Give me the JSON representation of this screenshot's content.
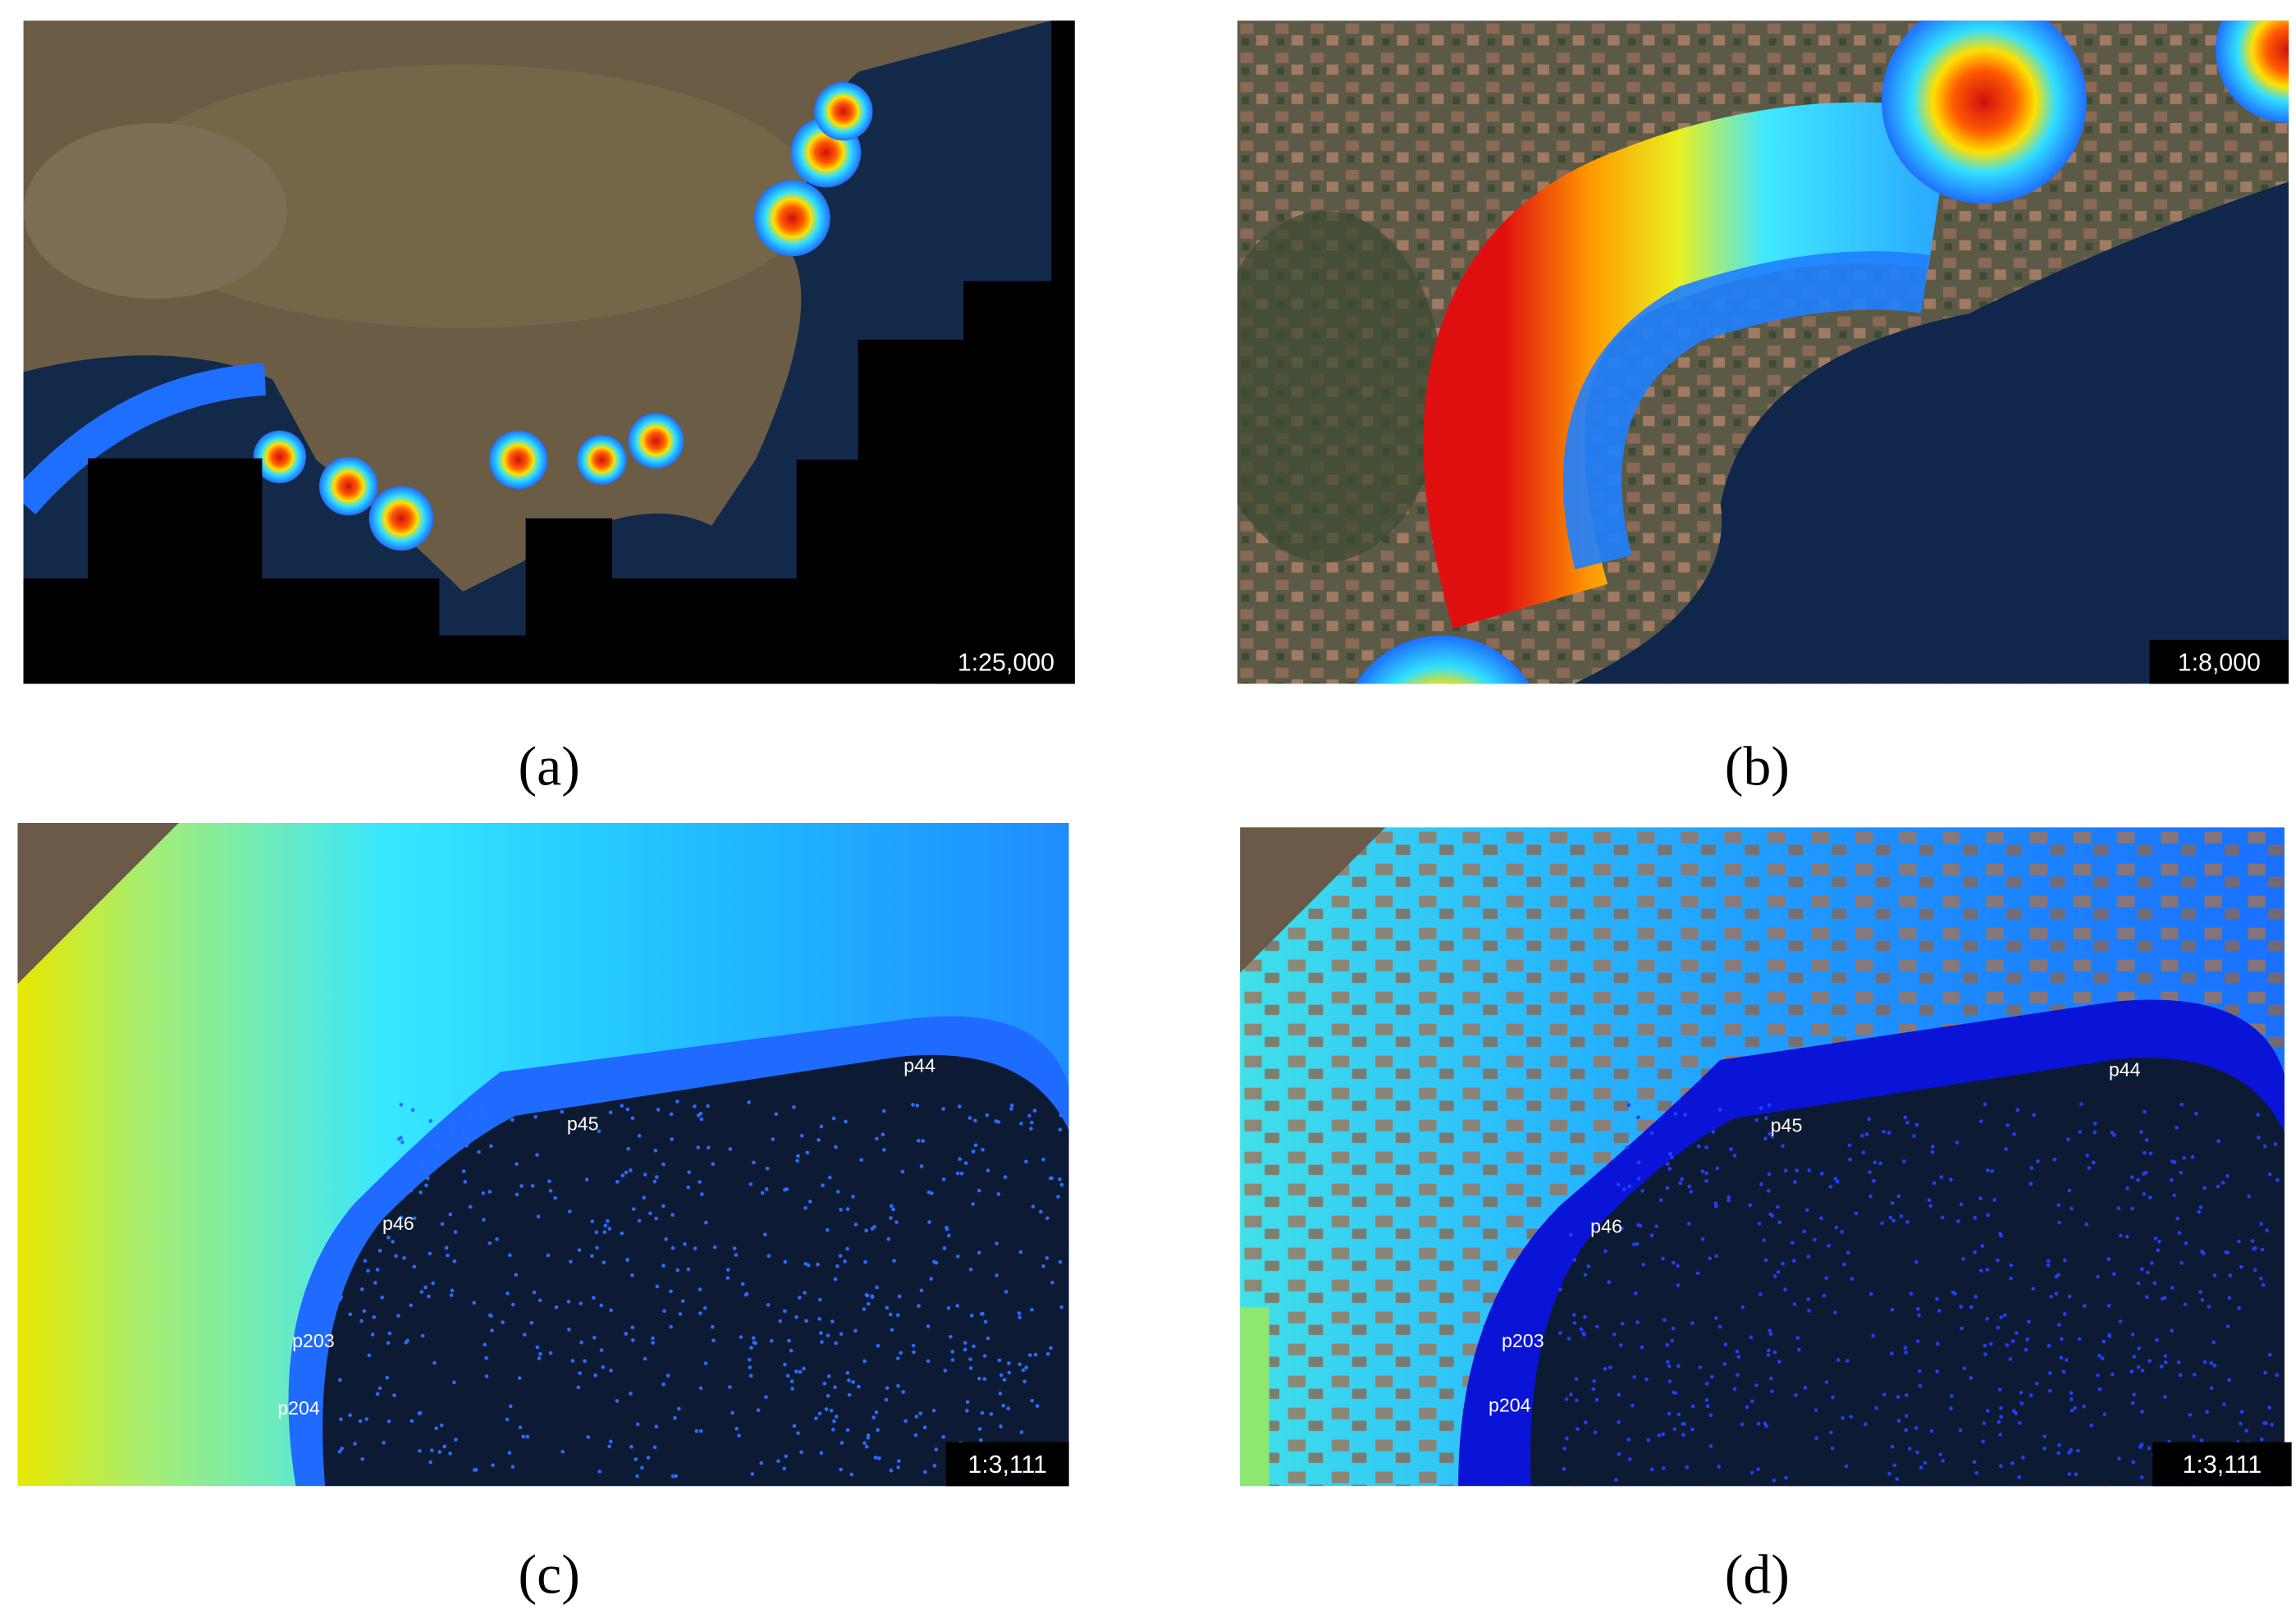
{
  "panels": [
    {
      "caption": "(a)",
      "scale": "1:25,000"
    },
    {
      "caption": "(b)",
      "scale": "1:8,000"
    },
    {
      "caption": "(c)",
      "scale": "1:3,111",
      "points": [
        "p44",
        "p45",
        "p46",
        "p203",
        "p204"
      ]
    },
    {
      "caption": "(d)",
      "scale": "1:3,111",
      "points": [
        "p44",
        "p45",
        "p46",
        "p203",
        "p204"
      ]
    }
  ]
}
